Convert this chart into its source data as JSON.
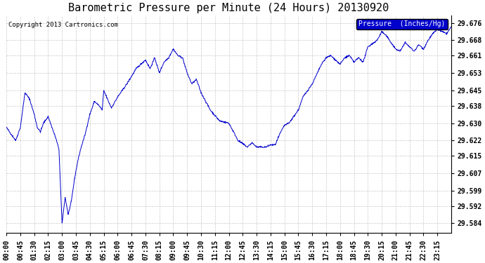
{
  "title": "Barometric Pressure per Minute (24 Hours) 20130920",
  "copyright": "Copyright 2013 Cartronics.com",
  "legend_label": "Pressure  (Inches/Hg)",
  "legend_bg": "#0000cc",
  "legend_text_color": "#ffffff",
  "line_color": "#0000cc",
  "background_color": "#ffffff",
  "grid_color": "#bbbbbb",
  "yticks": [
    29.584,
    29.592,
    29.599,
    29.607,
    29.615,
    29.622,
    29.63,
    29.638,
    29.645,
    29.653,
    29.661,
    29.668,
    29.676
  ],
  "ylim": [
    29.5795,
    29.6795
  ],
  "xtick_labels": [
    "00:00",
    "00:45",
    "01:30",
    "02:15",
    "03:00",
    "03:45",
    "04:30",
    "05:15",
    "06:00",
    "06:45",
    "07:30",
    "08:15",
    "09:00",
    "09:45",
    "10:30",
    "11:15",
    "12:00",
    "12:45",
    "13:30",
    "14:15",
    "15:00",
    "15:45",
    "16:30",
    "17:15",
    "18:00",
    "18:45",
    "19:30",
    "20:15",
    "21:00",
    "21:45",
    "22:30",
    "23:15"
  ],
  "title_fontsize": 11,
  "axis_fontsize": 7,
  "copyright_fontsize": 6.5,
  "figsize": [
    6.9,
    3.75
  ],
  "dpi": 100
}
